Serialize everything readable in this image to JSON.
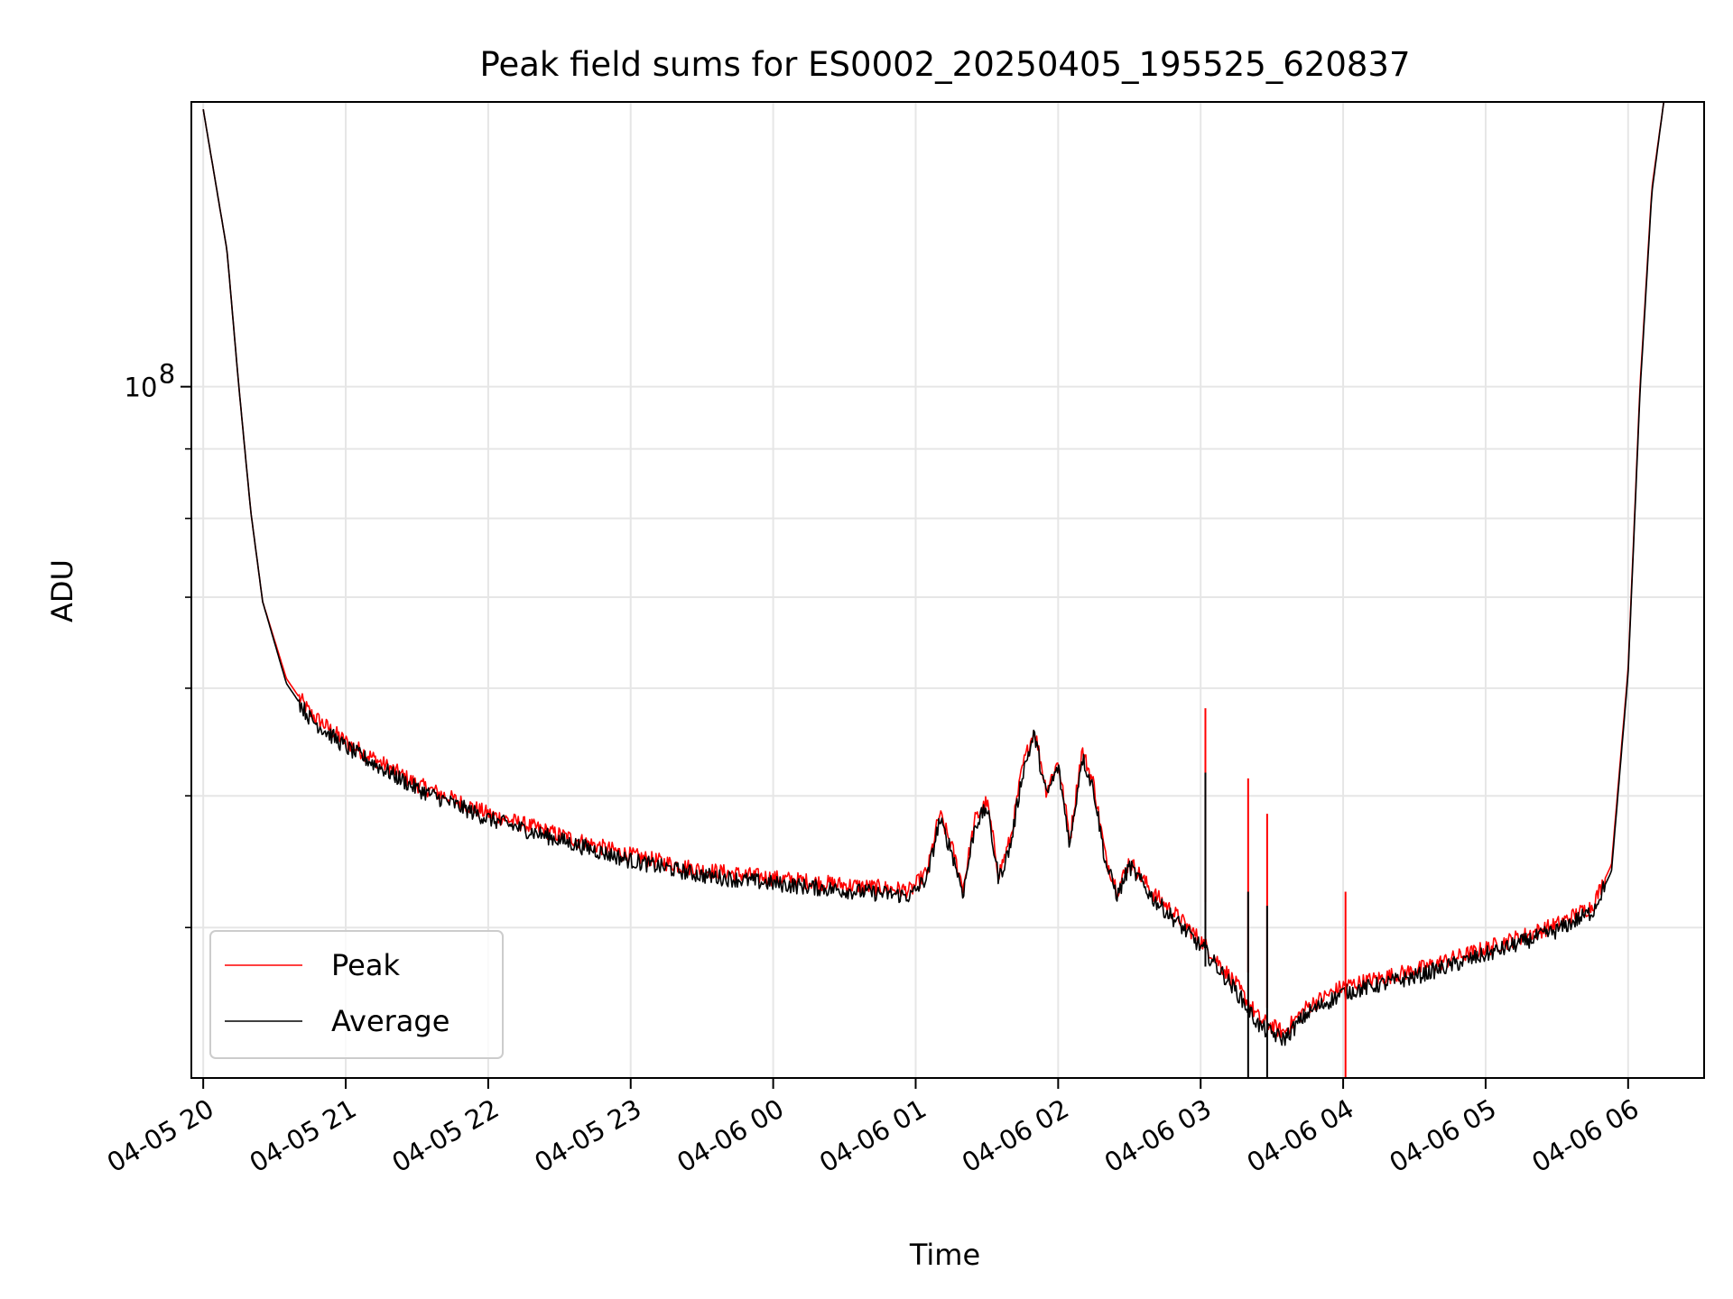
{
  "chart_data": {
    "type": "line",
    "title": "Peak field sums for ES0002_20250405_195525_620837",
    "xlabel": "Time",
    "ylabel": "ADU",
    "y_scale": "log",
    "ylim": [
      31000000,
      162000000
    ],
    "xlim": [
      "2025-04-05 19:55",
      "2025-04-06 06:32"
    ],
    "grid": true,
    "legend": "lower-left",
    "x_tick_labels": [
      "04-05 20",
      "04-05 21",
      "04-05 22",
      "04-05 23",
      "04-06 00",
      "04-06 01",
      "04-06 02",
      "04-06 03",
      "04-06 04",
      "04-06 05",
      "04-06 06"
    ],
    "x_tick_times": [
      "2025-04-05 20:00",
      "2025-04-05 21:00",
      "2025-04-05 22:00",
      "2025-04-05 23:00",
      "2025-04-06 00:00",
      "2025-04-06 01:00",
      "2025-04-06 02:00",
      "2025-04-06 03:00",
      "2025-04-06 04:00",
      "2025-04-06 05:00",
      "2025-04-06 06:00"
    ],
    "y_tick_labels": [
      {
        "value": 100000000,
        "label": "10",
        "exponent": "8"
      }
    ],
    "series": [
      {
        "name": "Peak",
        "color": "#ff0000",
        "x": [
          "2025-04-05 20:00",
          "2025-04-05 20:10",
          "2025-04-05 20:15",
          "2025-04-05 20:20",
          "2025-04-05 20:25",
          "2025-04-05 20:35",
          "2025-04-05 20:45",
          "2025-04-05 21:00",
          "2025-04-05 21:30",
          "2025-04-05 22:00",
          "2025-04-05 22:30",
          "2025-04-05 23:00",
          "2025-04-05 23:30",
          "2025-04-06 00:00",
          "2025-04-06 00:30",
          "2025-04-06 00:58",
          "2025-04-06 01:05",
          "2025-04-06 01:10",
          "2025-04-06 01:15",
          "2025-04-06 01:20",
          "2025-04-06 01:25",
          "2025-04-06 01:30",
          "2025-04-06 01:35",
          "2025-04-06 01:40",
          "2025-04-06 01:45",
          "2025-04-06 01:50",
          "2025-04-06 01:55",
          "2025-04-06 02:00",
          "2025-04-06 02:05",
          "2025-04-06 02:10",
          "2025-04-06 02:15",
          "2025-04-06 02:20",
          "2025-04-06 02:25",
          "2025-04-06 02:30",
          "2025-04-06 02:40",
          "2025-04-06 02:50",
          "2025-04-06 03:02",
          "2025-04-06 03:15",
          "2025-04-06 03:25",
          "2025-04-06 03:35",
          "2025-04-06 03:45",
          "2025-04-06 04:00",
          "2025-04-06 04:30",
          "2025-04-06 05:00",
          "2025-04-06 05:30",
          "2025-04-06 05:45",
          "2025-04-06 05:53",
          "2025-04-06 06:00",
          "2025-04-06 06:05",
          "2025-04-06 06:10",
          "2025-04-06 06:15"
        ],
        "values": [
          160000000,
          126000000,
          100000000,
          81000000,
          69500000,
          61000000,
          57500000,
          54800000,
          51000000,
          48500000,
          46800000,
          45200000,
          44100000,
          43500000,
          43000000,
          42600000,
          44000000,
          48500000,
          46000000,
          42800000,
          48000000,
          49500000,
          43800000,
          46500000,
          52500000,
          56000000,
          50500000,
          53000000,
          46500000,
          54000000,
          51000000,
          45000000,
          42600000,
          44800000,
          42400000,
          40800000,
          38800000,
          36300000,
          34200000,
          33500000,
          35000000,
          36200000,
          37200000,
          38600000,
          40200000,
          41500000,
          44500000,
          62000000,
          100000000,
          140000000,
          162000000
        ]
      },
      {
        "name": "Average",
        "color": "#000000",
        "x": [
          "2025-04-05 20:00",
          "2025-04-05 20:10",
          "2025-04-05 20:15",
          "2025-04-05 20:20",
          "2025-04-05 20:25",
          "2025-04-05 20:35",
          "2025-04-05 20:45",
          "2025-04-05 21:00",
          "2025-04-05 21:30",
          "2025-04-05 22:00",
          "2025-04-05 22:30",
          "2025-04-05 23:00",
          "2025-04-05 23:30",
          "2025-04-06 00:00",
          "2025-04-06 00:30",
          "2025-04-06 00:58",
          "2025-04-06 01:05",
          "2025-04-06 01:10",
          "2025-04-06 01:15",
          "2025-04-06 01:20",
          "2025-04-06 01:25",
          "2025-04-06 01:30",
          "2025-04-06 01:35",
          "2025-04-06 01:40",
          "2025-04-06 01:45",
          "2025-04-06 01:50",
          "2025-04-06 01:55",
          "2025-04-06 02:00",
          "2025-04-06 02:05",
          "2025-04-06 02:10",
          "2025-04-06 02:15",
          "2025-04-06 02:20",
          "2025-04-06 02:25",
          "2025-04-06 02:30",
          "2025-04-06 02:40",
          "2025-04-06 02:50",
          "2025-04-06 03:02",
          "2025-04-06 03:15",
          "2025-04-06 03:25",
          "2025-04-06 03:35",
          "2025-04-06 03:45",
          "2025-04-06 04:00",
          "2025-04-06 04:30",
          "2025-04-06 05:00",
          "2025-04-06 05:30",
          "2025-04-06 05:45",
          "2025-04-06 05:53",
          "2025-04-06 06:00",
          "2025-04-06 06:05",
          "2025-04-06 06:10",
          "2025-04-06 06:15"
        ],
        "values": [
          160000000,
          126000000,
          100000000,
          81000000,
          69500000,
          60500000,
          57000000,
          54300000,
          50600000,
          48100000,
          46400000,
          44800000,
          43700000,
          43100000,
          42600000,
          42200000,
          43600000,
          48000000,
          45600000,
          42400000,
          47600000,
          49000000,
          43400000,
          46000000,
          52000000,
          55500000,
          50000000,
          52500000,
          46000000,
          53500000,
          50500000,
          44600000,
          42200000,
          44400000,
          42000000,
          40400000,
          38400000,
          35900000,
          33800000,
          33100000,
          34600000,
          35800000,
          36800000,
          38200000,
          39800000,
          41100000,
          44000000,
          61500000,
          99000000,
          139000000,
          162000000
        ]
      }
    ],
    "spikes": [
      {
        "series": "Peak",
        "x": "2025-04-06 03:02",
        "value": 58000000
      },
      {
        "series": "Average",
        "x": "2025-04-06 03:02",
        "value": 52000000
      },
      {
        "series": "Peak",
        "x": "2025-04-06 03:20",
        "value": 51500000
      },
      {
        "series": "Average",
        "x": "2025-04-06 03:20",
        "value": 42500000
      },
      {
        "series": "Peak",
        "x": "2025-04-06 03:28",
        "value": 48500000
      },
      {
        "series": "Average",
        "x": "2025-04-06 03:28",
        "value": 41500000
      },
      {
        "series": "Peak",
        "x": "2025-04-06 04:01",
        "value": 42500000
      }
    ]
  }
}
